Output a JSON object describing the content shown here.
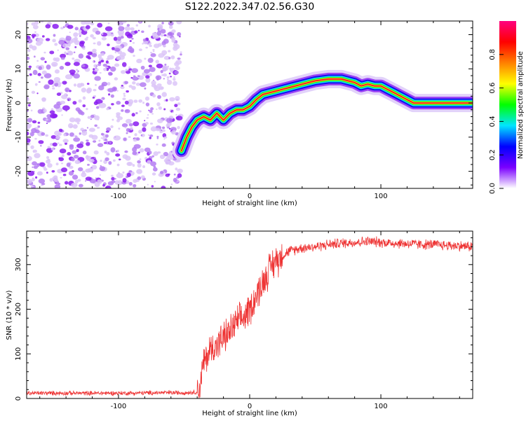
{
  "title": "S122.2022.347.02.56.G30",
  "chart_data": [
    {
      "type": "heatmap",
      "xlabel": "Height of straight line (km)",
      "ylabel": "Frequency (Hz)",
      "xlim": [
        -170,
        170
      ],
      "ylim": [
        -25,
        24
      ],
      "x_ticks": [
        -100,
        0,
        100
      ],
      "y_ticks": [
        -20,
        -10,
        0,
        10,
        20
      ],
      "noise_region_x": [
        -170,
        -52
      ],
      "colorbar": {
        "label": "Normalized spectral amplitude",
        "range": [
          0,
          1
        ],
        "ticks": [
          "0.0",
          "0.2",
          "0.4",
          "0.6",
          "0.8"
        ],
        "colors": [
          "#ffffff",
          "#7a00ff",
          "#0000ff",
          "#00e5ff",
          "#00ff00",
          "#ffff00",
          "#ff8000",
          "#ff0000",
          "#ff0080"
        ]
      },
      "ridge": {
        "x": [
          -52,
          -48,
          -44,
          -40,
          -35,
          -30,
          -25,
          -20,
          -15,
          -10,
          -5,
          0,
          5,
          10,
          20,
          30,
          40,
          50,
          60,
          70,
          75,
          80,
          85,
          90,
          95,
          100,
          105,
          110,
          115,
          120,
          125,
          130,
          140,
          150,
          160,
          170
        ],
        "y": [
          -14,
          -10,
          -7,
          -5,
          -4,
          -5,
          -3,
          -5,
          -3,
          -2,
          -2,
          -1,
          1,
          2.5,
          3.5,
          4.5,
          5.5,
          6.5,
          7,
          7,
          6.5,
          6,
          5,
          5.5,
          5,
          5,
          4,
          3,
          2,
          1,
          0,
          0,
          0,
          0,
          0,
          0
        ]
      }
    },
    {
      "type": "line",
      "xlabel": "Height of straight line (km)",
      "ylabel": "SNR (10 * v/v)",
      "xlim": [
        -170,
        170
      ],
      "ylim": [
        0,
        375
      ],
      "x_ticks": [
        -100,
        0,
        100
      ],
      "y_ticks": [
        0,
        100,
        200,
        300
      ],
      "color": "#ee3333",
      "series": [
        {
          "x": [
            -170,
            -150,
            -130,
            -110,
            -90,
            -70,
            -50,
            -40,
            -38,
            -35,
            -30,
            -25,
            -20,
            -15,
            -10,
            -5,
            0,
            5,
            10,
            15,
            20,
            25,
            30,
            40,
            50,
            60,
            70,
            80,
            90,
            100,
            110,
            120,
            130,
            140,
            150,
            160,
            170
          ],
          "y": [
            12,
            12,
            12,
            12,
            12,
            13,
            13,
            14,
            25,
            80,
            110,
            120,
            135,
            150,
            170,
            180,
            200,
            230,
            260,
            290,
            310,
            320,
            330,
            338,
            340,
            345,
            348,
            350,
            352,
            350,
            348,
            347,
            345,
            345,
            343,
            342,
            340
          ]
        }
      ]
    }
  ]
}
